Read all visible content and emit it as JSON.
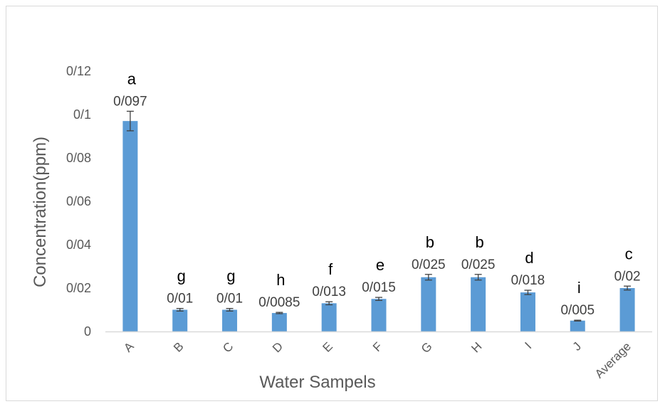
{
  "chart_data": {
    "type": "bar",
    "categories": [
      "A",
      "B",
      "C",
      "D",
      "E",
      "F",
      "G",
      "H",
      "I",
      "J",
      "Average"
    ],
    "values": [
      0.097,
      0.01,
      0.01,
      0.0085,
      0.013,
      0.015,
      0.025,
      0.025,
      0.018,
      0.005,
      0.02
    ],
    "errors": [
      0.0045,
      0.0006,
      0.0006,
      0.0003,
      0.0007,
      0.0007,
      0.0013,
      0.0013,
      0.001,
      0.0002,
      0.0009
    ],
    "data_labels": [
      "0/097",
      "0/01",
      "0/01",
      "0/0085",
      "0/013",
      "0/015",
      "0/025",
      "0/025",
      "0/018",
      "0/005",
      "0/02"
    ],
    "significance_letters": [
      "a",
      "g",
      "g",
      "h",
      "f",
      "e",
      "b",
      "b",
      "d",
      "i",
      "c"
    ],
    "y_tick_values": [
      0,
      0.02,
      0.04,
      0.06,
      0.08,
      0.1,
      0.12
    ],
    "y_tick_labels": [
      "0",
      "0/02",
      "0/04",
      "0/06",
      "0/08",
      "0/1",
      "0/12"
    ],
    "xlabel": "Water Sampels",
    "ylabel": "Concentration(ppm)",
    "ylim": [
      0,
      0.12
    ],
    "grid": false,
    "legend": "none",
    "bar_color": "#5b9bd5",
    "axis_line_color": "#d9d9d9"
  }
}
